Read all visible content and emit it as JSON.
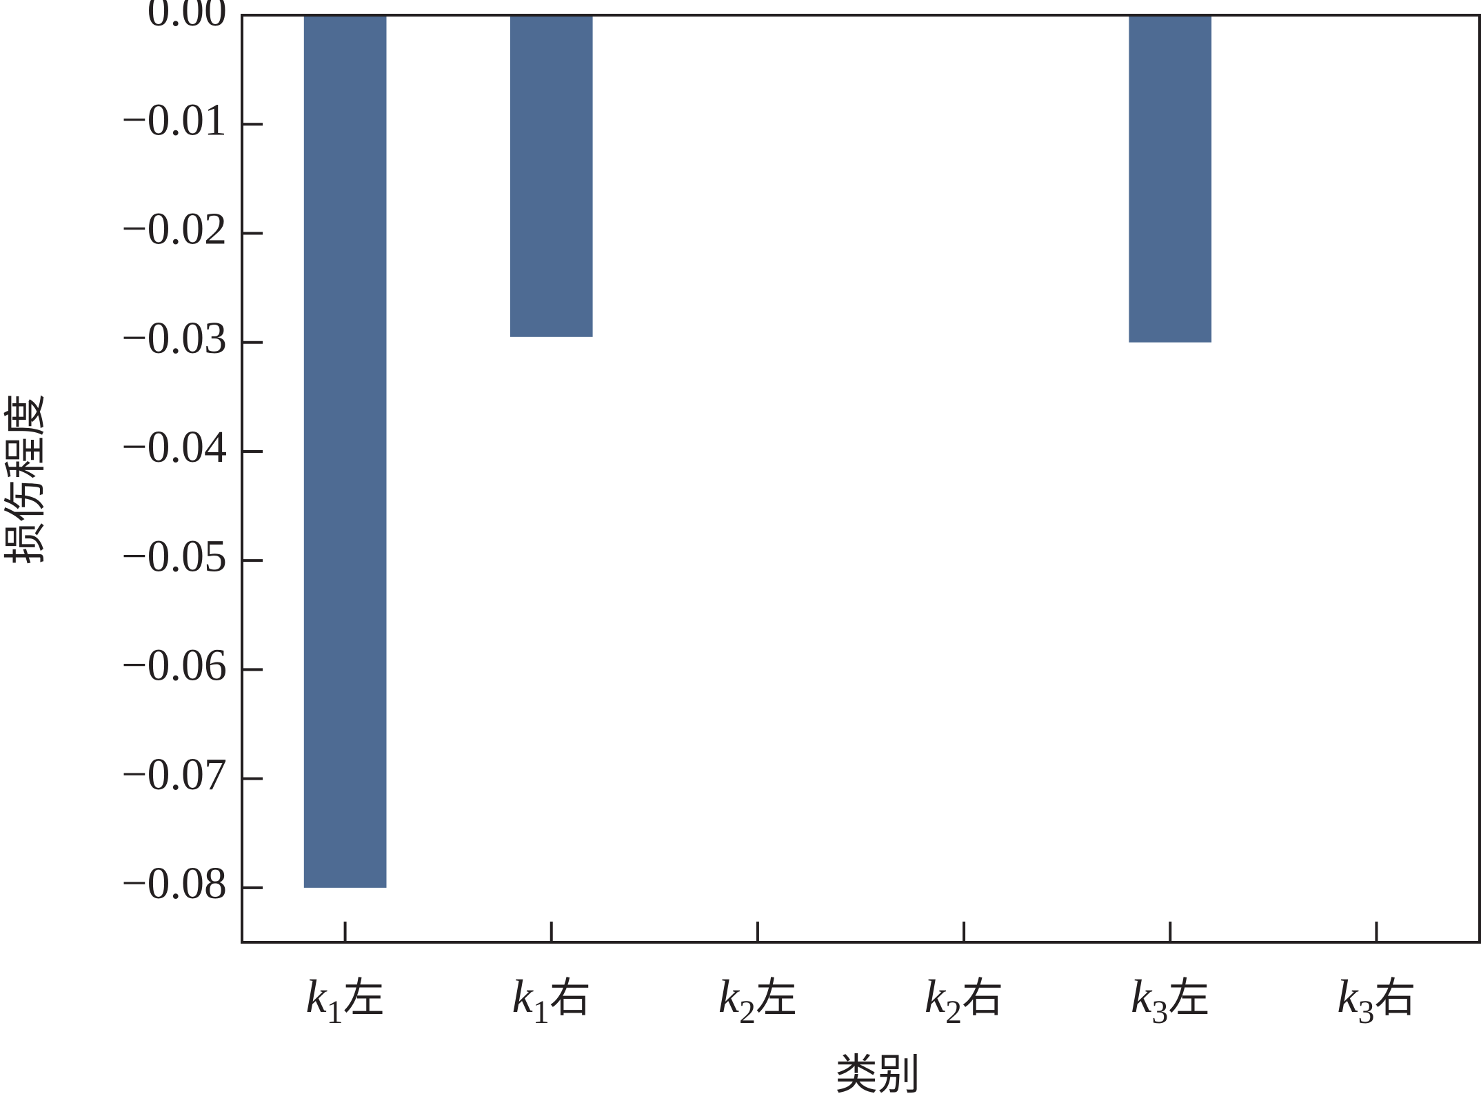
{
  "chart_data": {
    "type": "bar",
    "title": "",
    "xlabel": "类别",
    "ylabel": "损伤程度",
    "categories": [
      {
        "label": "k",
        "sub": "1",
        "suffix": "左"
      },
      {
        "label": "k",
        "sub": "1",
        "suffix": "右"
      },
      {
        "label": "k",
        "sub": "2",
        "suffix": "左"
      },
      {
        "label": "k",
        "sub": "2",
        "suffix": "右"
      },
      {
        "label": "k",
        "sub": "3",
        "suffix": "左"
      },
      {
        "label": "k",
        "sub": "3",
        "suffix": "右"
      }
    ],
    "values": [
      -0.08,
      -0.0295,
      0,
      0,
      -0.03,
      0
    ],
    "ylim": [
      -0.085,
      0
    ],
    "yticks": [
      "0.00",
      "−0.01",
      "−0.02",
      "−0.03",
      "−0.04",
      "−0.05",
      "−0.06",
      "−0.07",
      "−0.08"
    ],
    "ytick_values": [
      0,
      -0.01,
      -0.02,
      -0.03,
      -0.04,
      -0.05,
      -0.06,
      -0.07,
      -0.08
    ],
    "grid": false,
    "bar_color": "#4e6b93",
    "axis_color": "#231f20"
  }
}
